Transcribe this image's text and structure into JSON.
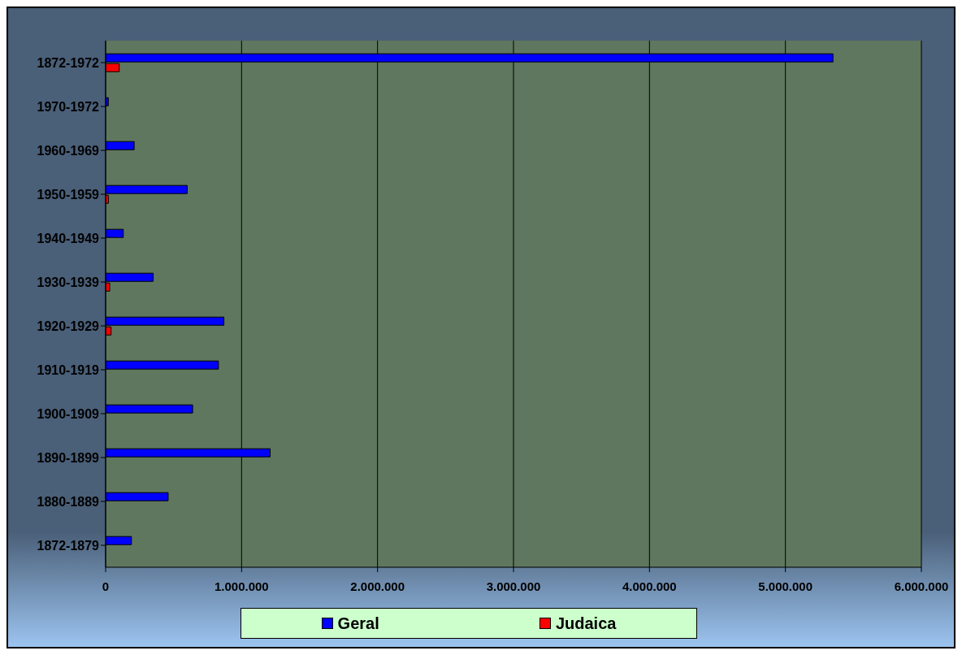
{
  "chart_data": {
    "type": "bar",
    "orientation": "horizontal",
    "categories": [
      "1872-1972",
      "1970-1972",
      "1960-1969",
      "1950-1959",
      "1940-1949",
      "1930-1939",
      "1920-1929",
      "1910-1919",
      "1900-1909",
      "1890-1899",
      "1880-1889",
      "1872-1879"
    ],
    "series": [
      {
        "name": "Geral",
        "color": "#0000ff",
        "values": [
          5350000,
          20000,
          210000,
          600000,
          130000,
          350000,
          870000,
          830000,
          640000,
          1210000,
          460000,
          190000
        ]
      },
      {
        "name": "Judaica",
        "color": "#ff0000",
        "values": [
          100000,
          null,
          null,
          20000,
          null,
          30000,
          40000,
          null,
          null,
          null,
          null,
          null
        ]
      }
    ],
    "xlim": [
      0,
      6000000
    ],
    "xticks": [
      0,
      {
        "value": 1000000,
        "label": "1.000.000"
      },
      {
        "value": 2000000,
        "label": "2.000.000"
      },
      {
        "value": 3000000,
        "label": "3.000.000"
      },
      {
        "value": 4000000,
        "label": "4.000.000"
      },
      {
        "value": 5000000,
        "label": "5.000.000"
      },
      {
        "value": 6000000,
        "label": "6.000.000"
      }
    ],
    "grid": "x",
    "legend": "bottom"
  }
}
